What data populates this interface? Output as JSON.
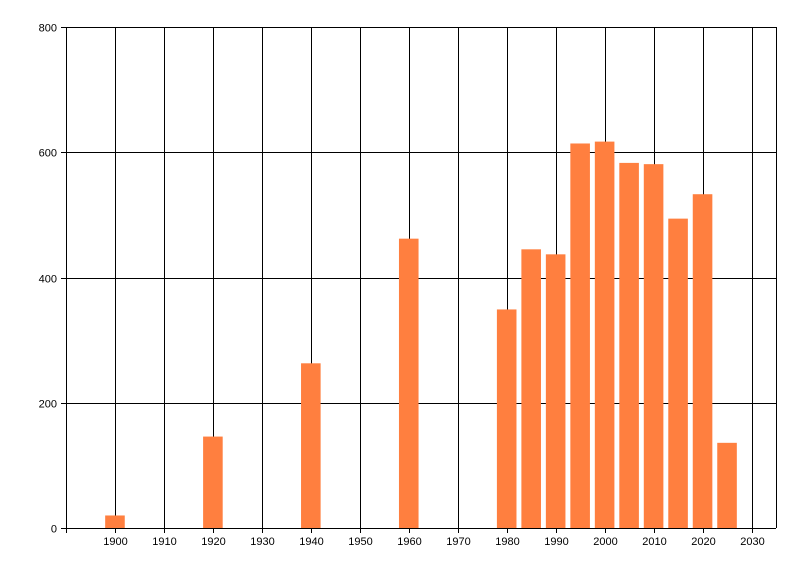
{
  "chart_data": {
    "type": "bar",
    "title": "",
    "xlabel": "",
    "ylabel": "",
    "x": [
      1900,
      1920,
      1940,
      1960,
      1980,
      1985,
      1990,
      1995,
      2000,
      2005,
      2010,
      2015,
      2020,
      2025
    ],
    "values": [
      20,
      146,
      263,
      462,
      349,
      445,
      437,
      614,
      617,
      583,
      581,
      494,
      533,
      136
    ],
    "xlim": [
      1890,
      2035
    ],
    "ylim": [
      0,
      800
    ],
    "x_ticks": [
      1900,
      1910,
      1920,
      1930,
      1940,
      1950,
      1960,
      1970,
      1980,
      1990,
      2000,
      2010,
      2020,
      2030
    ],
    "y_ticks": [
      0,
      200,
      400,
      600,
      800
    ],
    "grid": true,
    "legend": "none",
    "bar_color": "#ff7f3f",
    "grid_color": "#000000"
  }
}
